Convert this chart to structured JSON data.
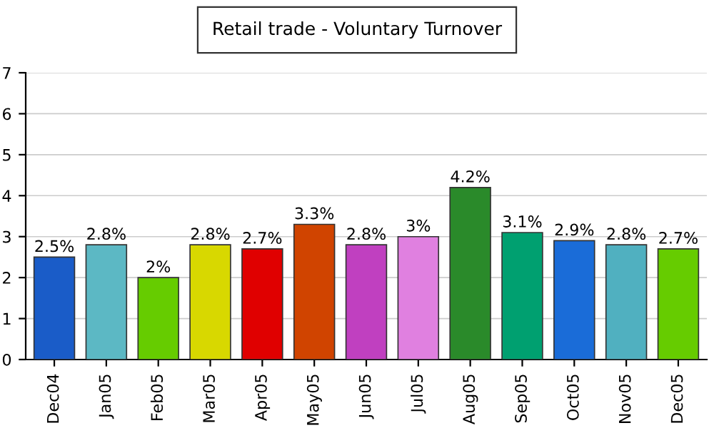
{
  "chart_data": {
    "type": "bar",
    "title": "Retail trade - Voluntary Turnover",
    "categories": [
      "Dec04",
      "Jan05",
      "Feb05",
      "Mar05",
      "Apr05",
      "May05",
      "Jun05",
      "Jul05",
      "Aug05",
      "Sep05",
      "Oct05",
      "Nov05",
      "Dec05"
    ],
    "values": [
      2.5,
      2.8,
      2,
      2.8,
      2.7,
      3.3,
      2.8,
      3,
      4.2,
      3.1,
      2.9,
      2.8,
      2.7
    ],
    "value_labels": [
      "2.5%",
      "2.8%",
      "2%",
      "2.8%",
      "2.7%",
      "3.3%",
      "2.8%",
      "3%",
      "4.2%",
      "3.1%",
      "2.9%",
      "2.8%",
      "2.7%"
    ],
    "colors": [
      "#1a5cc8",
      "#5cb8c4",
      "#66cc00",
      "#d8d800",
      "#e00000",
      "#d04400",
      "#c040c0",
      "#e080e0",
      "#2a8a2a",
      "#00a070",
      "#1a6cd8",
      "#50b0c0",
      "#66cc00"
    ],
    "ylim": [
      0,
      7
    ],
    "yticks": [
      0,
      1,
      2,
      3,
      4,
      5,
      6,
      7
    ],
    "grid": "y"
  }
}
